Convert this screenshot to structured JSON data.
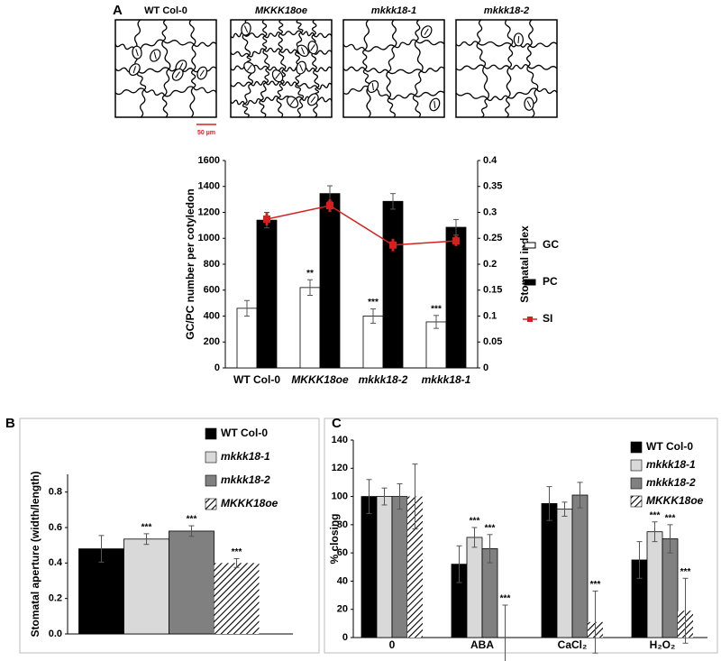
{
  "figure": {
    "panel_labels": [
      "A",
      "B",
      "C"
    ],
    "micrographs": [
      "WT  Col-0",
      "MKKK18oe",
      "mkkk18-1",
      "mkkk18-2"
    ],
    "scale_bar": "50 µm"
  },
  "chart_data": [
    {
      "type": "bar",
      "y_label": "GC/PC number per cotyledon",
      "y2_label": "Stomatal  index",
      "categories": [
        "WT  Col-0",
        "MKKK18oe",
        "mkkk18-2",
        "mkkk18-1"
      ],
      "series": [
        {
          "name": "GC",
          "color": "#ffffff",
          "values": [
            460,
            620,
            400,
            355
          ],
          "errors": [
            60,
            60,
            55,
            50
          ],
          "significance": [
            null,
            "**",
            "***",
            "***"
          ]
        },
        {
          "name": "PC",
          "color": "#000000",
          "values": [
            1140,
            1345,
            1285,
            1085
          ],
          "errors": [
            60,
            60,
            60,
            60
          ]
        },
        {
          "name": "SI",
          "type": "line",
          "axis": "y2",
          "color": "#d62020",
          "values": [
            0.287,
            0.313,
            0.237,
            0.245
          ],
          "errors": [
            0.012,
            0.012,
            0.012,
            0.01
          ]
        }
      ],
      "ylim": [
        0,
        1600
      ],
      "yticks": [
        0,
        200,
        400,
        600,
        800,
        1000,
        1200,
        1400,
        1600
      ],
      "y2lim": [
        0,
        0.4
      ],
      "y2ticks": [
        0,
        0.05,
        0.1,
        0.15,
        0.2,
        0.25,
        0.3,
        0.35,
        0.4
      ],
      "legend": "right"
    },
    {
      "type": "bar",
      "y_label": "Stomatal aperture (width/length)",
      "categories": [
        null
      ],
      "series": [
        {
          "name": "WT Col-0",
          "color": "#000000",
          "values": [
            0.48
          ],
          "errors": [
            0.075
          ]
        },
        {
          "name": "mkkk18-1",
          "color": "#d9d9d9",
          "values": [
            0.535
          ],
          "errors": [
            0.03
          ],
          "significance": [
            "***"
          ]
        },
        {
          "name": "mkkk18-2",
          "color": "#808080",
          "values": [
            0.58
          ],
          "errors": [
            0.03
          ],
          "significance": [
            "***"
          ]
        },
        {
          "name": "MKKK18oe",
          "color": "#000000",
          "hatch": true,
          "values": [
            0.4
          ],
          "errors": [
            0.025
          ],
          "significance": [
            "***"
          ]
        }
      ],
      "ylim": [
        0,
        0.9
      ],
      "yticks": [
        {
          "value": 0,
          "label": "0.0"
        },
        0.2,
        0.4,
        0.6,
        0.8
      ],
      "legend": "upper right"
    },
    {
      "type": "bar",
      "y_label": "% closing",
      "categories": [
        "0",
        "ABA",
        "CaCl₂",
        "H₂O₂"
      ],
      "series": [
        {
          "name": "WT Col-0",
          "color": "#000000",
          "values": [
            100,
            52,
            95,
            55
          ],
          "errors": [
            12,
            13,
            12,
            13
          ]
        },
        {
          "name": "mkkk18-1",
          "color": "#d9d9d9",
          "values": [
            100,
            71,
            91,
            75
          ],
          "errors": [
            6,
            7,
            5,
            7
          ],
          "significance": [
            null,
            "***",
            null,
            "***"
          ]
        },
        {
          "name": "mkkk18-2",
          "color": "#808080",
          "values": [
            100,
            63,
            101,
            70
          ],
          "errors": [
            9,
            10,
            9,
            10
          ],
          "significance": [
            null,
            "***",
            null,
            "***"
          ]
        },
        {
          "name": "MKKK18oe",
          "color": "#000000",
          "hatch": true,
          "values": [
            100,
            0,
            11,
            19
          ],
          "errors": [
            23,
            23,
            22,
            23
          ],
          "significance": [
            null,
            "***",
            "***",
            "***"
          ]
        }
      ],
      "ylim": [
        0,
        140
      ],
      "yticks": [
        0,
        20,
        40,
        60,
        80,
        100,
        120,
        140
      ],
      "legend": "upper right"
    }
  ]
}
